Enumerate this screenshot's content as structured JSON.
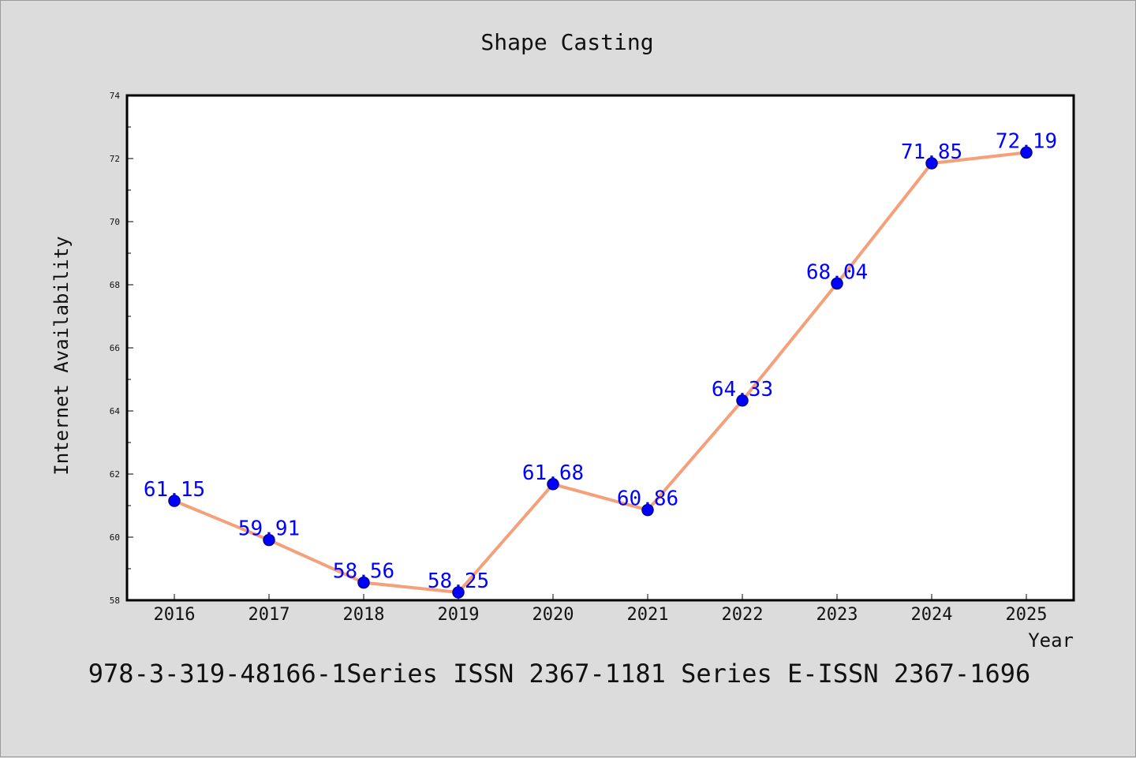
{
  "chart_data": {
    "type": "line",
    "title": "Shape Casting",
    "xlabel": "Year",
    "ylabel": "Internet Availability",
    "categories": [
      "2016",
      "2017",
      "2018",
      "2019",
      "2020",
      "2021",
      "2022",
      "2023",
      "2024",
      "2025"
    ],
    "series": [
      {
        "values": [
          61.15,
          59.91,
          58.56,
          58.25,
          61.68,
          60.86,
          64.33,
          68.04,
          71.85,
          72.19
        ],
        "labels": [
          "61.15",
          "59.91",
          "58.56",
          "58.25",
          "61.68",
          "60.86",
          "64.33",
          "68.04",
          "71.85",
          "72.19"
        ]
      }
    ],
    "ylim": [
      58,
      74
    ],
    "yticks": [
      "58",
      "60",
      "62",
      "64",
      "66",
      "68",
      "70",
      "72",
      "74"
    ],
    "grid": false,
    "legend": "none",
    "colors": {
      "line": "#f4a07a",
      "marker": "#0000ff",
      "marker_edge": "#00008b",
      "data_label": "#0000ff",
      "background": "#dcdcdc",
      "plot_background": "#ffffff"
    }
  },
  "footer_text": "978-3-319-48166-1Series ISSN 2367-1181 Series E-ISSN 2367-1696"
}
